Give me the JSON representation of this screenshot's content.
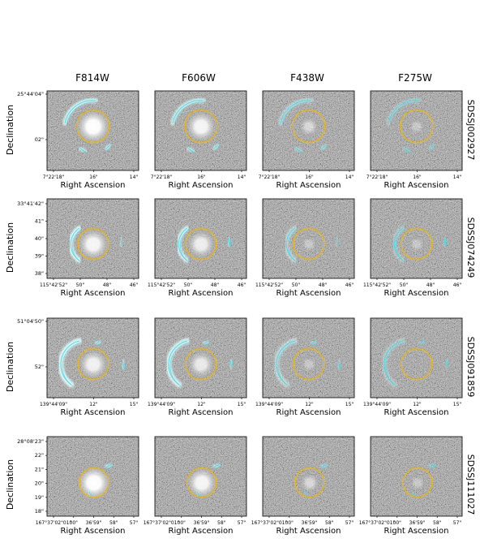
{
  "figure": {
    "columns": [
      {
        "band": "F814W",
        "brightness": 1.0
      },
      {
        "band": "F606W",
        "brightness": 0.9
      },
      {
        "band": "F438W",
        "brightness": 0.55
      },
      {
        "band": "F275W",
        "brightness": 0.35
      }
    ],
    "x_axis_label": "Right Ascension",
    "y_axis_label": "Declination",
    "rows": [
      {
        "object": "SDSSJ002927",
        "ra_ticks": [
          "7°22'18\"",
          "16\"",
          "14\""
        ],
        "dec_ticks": [
          "25°44'04\"",
          "02\""
        ],
        "core_brightness": 1.0
      },
      {
        "object": "SDSSJ074249",
        "ra_ticks": [
          "115°42'52\"",
          "50\"",
          "48\"",
          "46\""
        ],
        "dec_ticks": [
          "33°41'42\"",
          "41\"",
          "40\"",
          "39\"",
          "38\""
        ],
        "core_brightness": 0.9
      },
      {
        "object": "SDSSJ091859",
        "ra_ticks": [
          "139°44'09\"",
          "12\"",
          "15\""
        ],
        "dec_ticks": [
          "51°04'50\"",
          "52\""
        ],
        "core_brightness": 0.85
      },
      {
        "object": "SDSSJ111027",
        "ra_ticks": [
          "167°37'02\"01\"",
          "00\"",
          "36'59\"",
          "58\"",
          "57\""
        ],
        "dec_ticks": [
          "28°08'23\"",
          "22\"",
          "21\"",
          "20\"",
          "19\"",
          "18\""
        ],
        "core_brightness": 1.0
      }
    ],
    "colors": {
      "einstein_circle": "#f2b705",
      "contour": "#3fd6e6",
      "arc_fill": "#e8ffff",
      "background": "#ffffff"
    }
  }
}
